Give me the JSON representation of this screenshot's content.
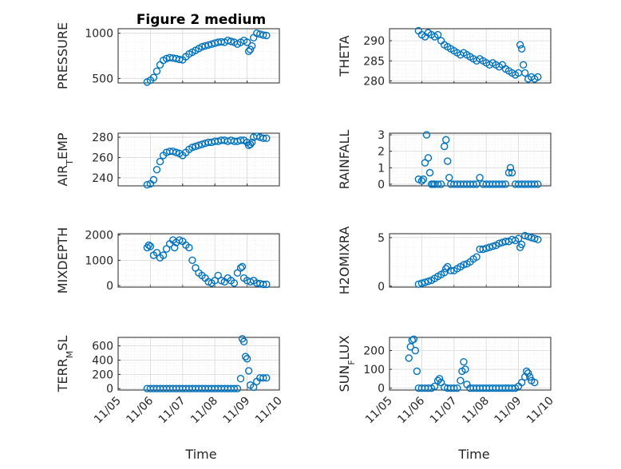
{
  "figure": {
    "title": "Figure 2 medium",
    "marker_color": "#0072BD",
    "xlabel": "Time"
  },
  "chart_data": [
    {
      "type": "scatter",
      "ylabel": "PRESSURE",
      "ylabel_parts": [
        {
          "t": "PRESSURE"
        }
      ],
      "xlim": [
        0,
        5
      ],
      "ylim": [
        450,
        1050
      ],
      "yticks": [
        500,
        1000
      ],
      "xticks": [
        "11/05",
        "11/06",
        "11/07",
        "11/08",
        "11/09",
        "11/10"
      ],
      "show_xtick_labels": false,
      "x": [
        0.9,
        1.0,
        1.1,
        1.2,
        1.3,
        1.4,
        1.5,
        1.6,
        1.7,
        1.8,
        1.9,
        2.0,
        2.1,
        2.2,
        2.3,
        2.4,
        2.5,
        2.6,
        2.7,
        2.8,
        2.9,
        3.0,
        3.1,
        3.2,
        3.3,
        3.4,
        3.5,
        3.6,
        3.7,
        3.8,
        3.9,
        4.0,
        4.05,
        4.1,
        4.15,
        4.2,
        4.3,
        4.4,
        4.5,
        4.6
      ],
      "y": [
        460,
        480,
        510,
        580,
        650,
        700,
        720,
        730,
        725,
        720,
        710,
        705,
        740,
        770,
        790,
        810,
        830,
        850,
        860,
        870,
        880,
        890,
        900,
        905,
        900,
        920,
        910,
        900,
        880,
        900,
        920,
        900,
        800,
        820,
        860,
        950,
        1000,
        990,
        980,
        975
      ]
    },
    {
      "type": "scatter",
      "ylabel": "THETA",
      "ylabel_parts": [
        {
          "t": "THETA"
        }
      ],
      "xlim": [
        0,
        5
      ],
      "ylim": [
        279.5,
        293
      ],
      "yticks": [
        280,
        285,
        290
      ],
      "xticks": [
        "11/05",
        "11/06",
        "11/07",
        "11/08",
        "11/09",
        "11/10"
      ],
      "show_xtick_labels": false,
      "x": [
        0.9,
        1.0,
        1.1,
        1.2,
        1.3,
        1.4,
        1.5,
        1.6,
        1.7,
        1.8,
        1.9,
        2.0,
        2.1,
        2.2,
        2.3,
        2.4,
        2.5,
        2.6,
        2.7,
        2.8,
        2.9,
        3.0,
        3.1,
        3.2,
        3.3,
        3.4,
        3.5,
        3.6,
        3.7,
        3.8,
        3.9,
        4.0,
        4.05,
        4.1,
        4.15,
        4.2,
        4.3,
        4.4,
        4.5,
        4.6
      ],
      "y": [
        292.5,
        291.5,
        291,
        292,
        291.5,
        291,
        291.5,
        290,
        289,
        288.5,
        288,
        287.5,
        287,
        286.5,
        287,
        286.5,
        286,
        285.5,
        285,
        285.5,
        285,
        284.5,
        284,
        284.5,
        284,
        283.5,
        284,
        283,
        282.5,
        282,
        281.5,
        282,
        289,
        288,
        284,
        282,
        280.5,
        281,
        280.5,
        281
      ]
    },
    {
      "type": "scatter",
      "ylabel": "AIR_TEMP",
      "ylabel_parts": [
        {
          "t": "AIR"
        },
        {
          "t": "T",
          "sub": true
        },
        {
          "t": "EMP"
        }
      ],
      "xlim": [
        0,
        5
      ],
      "ylim": [
        232,
        284
      ],
      "yticks": [
        240,
        260,
        280
      ],
      "xticks": [
        "11/05",
        "11/06",
        "11/07",
        "11/08",
        "11/09",
        "11/10"
      ],
      "show_xtick_labels": false,
      "x": [
        0.9,
        1.0,
        1.1,
        1.2,
        1.3,
        1.4,
        1.5,
        1.6,
        1.7,
        1.8,
        1.9,
        2.0,
        2.1,
        2.2,
        2.3,
        2.4,
        2.5,
        2.6,
        2.7,
        2.8,
        2.9,
        3.0,
        3.1,
        3.2,
        3.3,
        3.4,
        3.5,
        3.6,
        3.7,
        3.8,
        3.9,
        4.0,
        4.05,
        4.1,
        4.15,
        4.2,
        4.3,
        4.4,
        4.5,
        4.6
      ],
      "y": [
        233,
        234,
        238,
        248,
        256,
        262,
        265,
        266,
        266,
        265,
        264,
        262,
        265,
        268,
        270,
        271,
        272,
        273,
        274,
        275,
        275,
        276,
        276,
        277,
        277,
        276,
        277,
        276,
        276,
        277,
        277,
        275,
        272,
        273,
        275,
        280,
        281,
        280,
        279,
        279
      ]
    },
    {
      "type": "scatter",
      "ylabel": "RAINFALL",
      "ylabel_parts": [
        {
          "t": "RAINFALL"
        }
      ],
      "xlim": [
        0,
        5
      ],
      "ylim": [
        -0.1,
        3.1
      ],
      "yticks": [
        0,
        1,
        2,
        3
      ],
      "xticks": [
        "11/05",
        "11/06",
        "11/07",
        "11/08",
        "11/09",
        "11/10"
      ],
      "show_xtick_labels": false,
      "x": [
        0.9,
        1.0,
        1.05,
        1.1,
        1.15,
        1.2,
        1.25,
        1.3,
        1.35,
        1.4,
        1.5,
        1.6,
        1.7,
        1.75,
        1.8,
        1.85,
        1.9,
        2.0,
        2.1,
        2.2,
        2.3,
        2.4,
        2.5,
        2.6,
        2.7,
        2.8,
        2.9,
        3.0,
        3.1,
        3.2,
        3.3,
        3.4,
        3.5,
        3.6,
        3.7,
        3.75,
        3.8,
        3.9,
        4.0,
        4.1,
        4.2,
        4.3,
        4.4,
        4.5,
        4.6
      ],
      "y": [
        0.3,
        0.2,
        0.3,
        1.3,
        3.0,
        1.6,
        0.7,
        0,
        0,
        0,
        0,
        0,
        2.3,
        2.7,
        1.4,
        0.4,
        0,
        0,
        0,
        0,
        0,
        0,
        0,
        0,
        0,
        0.4,
        0,
        0,
        0,
        0,
        0,
        0,
        0,
        0,
        0.7,
        1.0,
        0.7,
        0,
        0,
        0,
        0,
        0,
        0,
        0,
        0
      ]
    },
    {
      "type": "scatter",
      "ylabel": "MIXDEPTH",
      "ylabel_parts": [
        {
          "t": "MIXDEPTH"
        }
      ],
      "xlim": [
        0,
        5
      ],
      "ylim": [
        -60,
        2050
      ],
      "yticks": [
        0,
        1000,
        2000
      ],
      "xticks": [
        "11/05",
        "11/06",
        "11/07",
        "11/08",
        "11/09",
        "11/10"
      ],
      "show_xtick_labels": false,
      "x": [
        0.9,
        0.95,
        1.0,
        1.1,
        1.2,
        1.3,
        1.4,
        1.5,
        1.6,
        1.7,
        1.75,
        1.8,
        1.9,
        2.0,
        2.1,
        2.2,
        2.3,
        2.4,
        2.5,
        2.6,
        2.7,
        2.8,
        2.9,
        3.0,
        3.1,
        3.2,
        3.3,
        3.4,
        3.5,
        3.6,
        3.7,
        3.8,
        3.85,
        3.9,
        4.0,
        4.1,
        4.2,
        4.3,
        4.4,
        4.5,
        4.6
      ],
      "y": [
        1500,
        1600,
        1550,
        1200,
        1300,
        1100,
        1200,
        1450,
        1650,
        1800,
        1500,
        1700,
        1800,
        1750,
        1600,
        1500,
        1000,
        700,
        500,
        400,
        300,
        150,
        100,
        200,
        400,
        200,
        150,
        300,
        200,
        100,
        500,
        700,
        750,
        300,
        200,
        150,
        200,
        100,
        80,
        50,
        50
      ]
    },
    {
      "type": "scatter",
      "ylabel": "H2OMIXRA",
      "ylabel_parts": [
        {
          "t": "H2OMIXRA"
        }
      ],
      "xlim": [
        0,
        5
      ],
      "ylim": [
        -0.1,
        5.4
      ],
      "yticks": [
        0,
        5
      ],
      "xticks": [
        "11/05",
        "11/06",
        "11/07",
        "11/08",
        "11/09",
        "11/10"
      ],
      "show_xtick_labels": false,
      "x": [
        0.9,
        1.0,
        1.1,
        1.2,
        1.3,
        1.4,
        1.5,
        1.6,
        1.7,
        1.75,
        1.8,
        1.9,
        2.0,
        2.1,
        2.2,
        2.3,
        2.4,
        2.5,
        2.6,
        2.7,
        2.8,
        2.9,
        3.0,
        3.1,
        3.2,
        3.3,
        3.4,
        3.5,
        3.6,
        3.7,
        3.8,
        3.9,
        4.0,
        4.05,
        4.1,
        4.2,
        4.3,
        4.4,
        4.5,
        4.6
      ],
      "y": [
        0.2,
        0.3,
        0.4,
        0.5,
        0.6,
        0.8,
        1.0,
        1.2,
        1.4,
        1.8,
        2.0,
        1.6,
        1.6,
        1.8,
        2.0,
        2.2,
        2.3,
        2.5,
        2.8,
        3.0,
        3.8,
        3.8,
        3.9,
        4.0,
        4.1,
        4.2,
        4.4,
        4.5,
        4.6,
        4.6,
        4.8,
        4.7,
        4.9,
        4.0,
        4.3,
        5.2,
        5.1,
        5.0,
        4.9,
        4.8
      ]
    },
    {
      "type": "scatter",
      "ylabel": "TERR_MSL",
      "ylabel_parts": [
        {
          "t": "TERR"
        },
        {
          "t": "M",
          "sub": true
        },
        {
          "t": "SL"
        }
      ],
      "xlim": [
        0,
        5
      ],
      "ylim": [
        -20,
        720
      ],
      "yticks": [
        0,
        200,
        400,
        600
      ],
      "xticks": [
        "11/05",
        "11/06",
        "11/07",
        "11/08",
        "11/09",
        "11/10"
      ],
      "show_xtick_labels": true,
      "x": [
        0.9,
        1.0,
        1.1,
        1.2,
        1.3,
        1.4,
        1.5,
        1.6,
        1.7,
        1.8,
        1.9,
        2.0,
        2.1,
        2.2,
        2.3,
        2.4,
        2.5,
        2.6,
        2.7,
        2.8,
        2.9,
        3.0,
        3.1,
        3.2,
        3.3,
        3.4,
        3.5,
        3.6,
        3.7,
        3.8,
        3.85,
        3.9,
        3.95,
        4.0,
        4.05,
        4.1,
        4.2,
        4.3,
        4.4,
        4.5,
        4.6
      ],
      "y": [
        0,
        0,
        0,
        0,
        0,
        0,
        0,
        0,
        0,
        0,
        0,
        0,
        0,
        0,
        0,
        0,
        0,
        0,
        0,
        0,
        0,
        0,
        0,
        0,
        0,
        0,
        0,
        0,
        0,
        140,
        700,
        660,
        450,
        420,
        250,
        50,
        20,
        100,
        150,
        150,
        150
      ]
    },
    {
      "type": "scatter",
      "ylabel": "SUN_FLUX",
      "ylabel_parts": [
        {
          "t": "SUN"
        },
        {
          "t": "F",
          "sub": true
        },
        {
          "t": "LUX"
        }
      ],
      "xlim": [
        0,
        5
      ],
      "ylim": [
        -10,
        270
      ],
      "yticks": [
        0,
        100,
        200
      ],
      "xticks": [
        "11/05",
        "11/06",
        "11/07",
        "11/08",
        "11/09",
        "11/10"
      ],
      "show_xtick_labels": true,
      "x": [
        0.6,
        0.65,
        0.7,
        0.75,
        0.8,
        0.85,
        0.9,
        1.0,
        1.1,
        1.2,
        1.3,
        1.4,
        1.5,
        1.55,
        1.6,
        1.7,
        1.8,
        1.9,
        2.0,
        2.1,
        2.2,
        2.25,
        2.3,
        2.35,
        2.4,
        2.5,
        2.6,
        2.7,
        2.8,
        2.9,
        3.0,
        3.1,
        3.2,
        3.3,
        3.4,
        3.5,
        3.6,
        3.7,
        3.8,
        3.9,
        4.0,
        4.1,
        4.2,
        4.25,
        4.3,
        4.35,
        4.4,
        4.5
      ],
      "y": [
        160,
        220,
        255,
        260,
        200,
        90,
        0,
        0,
        0,
        0,
        0,
        10,
        40,
        50,
        30,
        5,
        0,
        0,
        0,
        0,
        40,
        90,
        140,
        100,
        20,
        0,
        0,
        0,
        0,
        0,
        0,
        0,
        0,
        0,
        0,
        0,
        0,
        0,
        0,
        0,
        10,
        30,
        60,
        90,
        80,
        60,
        40,
        30
      ]
    }
  ]
}
